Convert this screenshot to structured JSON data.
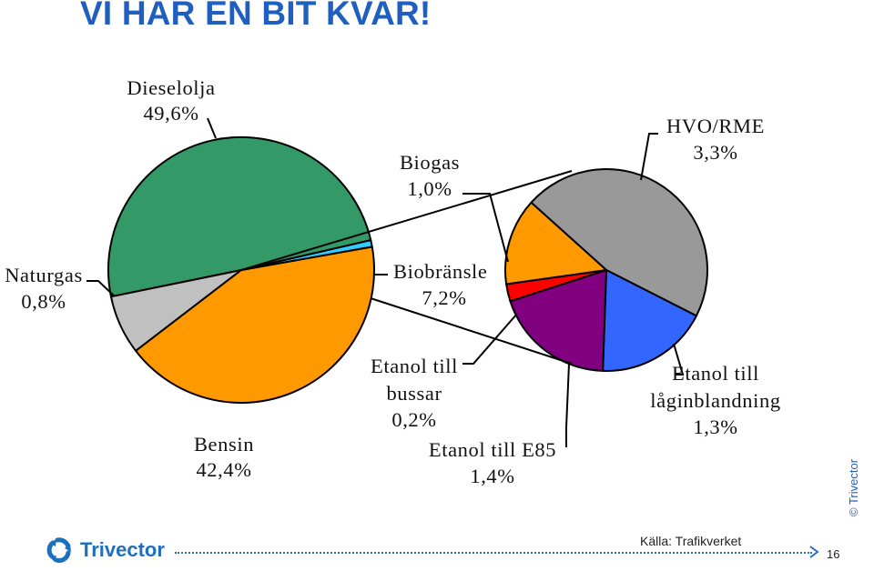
{
  "slide": {
    "title": "VI HAR EN BIT KVAR!",
    "copyright": "© Trivector",
    "source": "Källa: Trafikverket",
    "brand": "Trivector",
    "page_number": "16",
    "accent_color": "#1f5fbf"
  },
  "chart_data": {
    "type": "pie",
    "title": "",
    "main_pie": {
      "slices": [
        {
          "name": "Dieselolja",
          "value": 49.6,
          "label": "49,6%",
          "color": "#339966"
        },
        {
          "name": "Biobränsle",
          "value": 7.2,
          "label": "7,2%",
          "color": "#c0c0c0"
        },
        {
          "name": "Bensin",
          "value": 42.4,
          "label": "42,4%",
          "color": "#ff9900"
        },
        {
          "name": "Naturgas",
          "value": 0.8,
          "label": "0,8%",
          "color": "#33ccff"
        }
      ]
    },
    "breakout_pie": {
      "of": "Biobränsle",
      "slices": [
        {
          "name": "HVO/RME",
          "value": 3.3,
          "label": "3,3%",
          "color": "#999999"
        },
        {
          "name": "Etanol till låginblandning",
          "label_line1": "Etanol till",
          "label_line2": "låginblandning",
          "value": 1.3,
          "label": "1,3%",
          "color": "#3366ff"
        },
        {
          "name": "Etanol till E85",
          "value": 1.4,
          "label": "1,4%",
          "color": "#800080"
        },
        {
          "name": "Etanol till bussar",
          "label_line1": "Etanol till",
          "label_line2": "bussar",
          "value": 0.2,
          "label": "0,2%",
          "color": "#ff0000"
        },
        {
          "name": "Biogas",
          "value": 1.0,
          "label": "1,0%",
          "color": "#ff9900"
        }
      ]
    }
  }
}
